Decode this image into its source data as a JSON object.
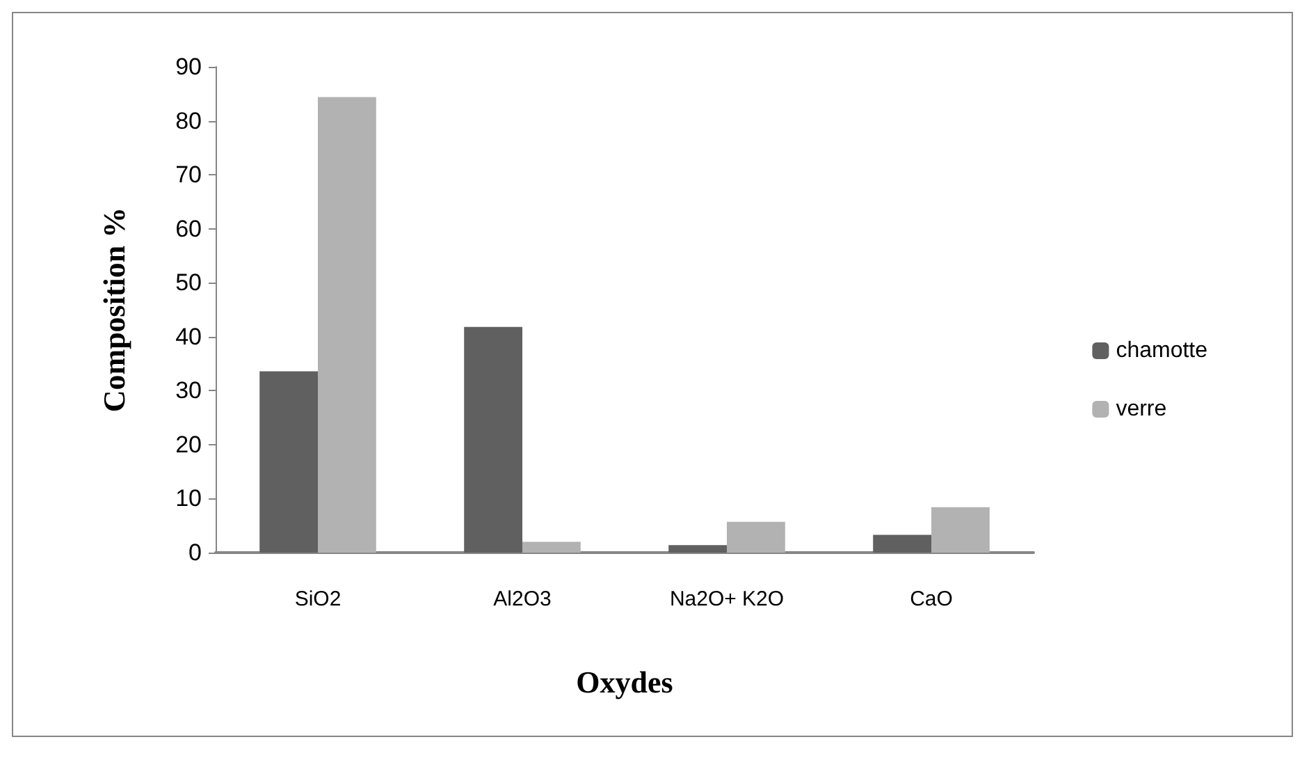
{
  "chart_data": {
    "type": "bar",
    "xlabel": "Oxydes",
    "ylabel": "Composition %",
    "categories": [
      "SiO2",
      "Al2O3",
      "Na2O+ K2O",
      "CaO"
    ],
    "series": [
      {
        "name": "chamotte",
        "color": "#606060",
        "values": [
          33.6,
          41.8,
          1.4,
          3.3
        ]
      },
      {
        "name": "verre",
        "color": "#b2b2b2",
        "values": [
          84.4,
          2.0,
          5.7,
          8.4
        ]
      }
    ],
    "ylim": [
      0,
      90
    ],
    "yticks": [
      0,
      10,
      20,
      30,
      40,
      50,
      60,
      70,
      80,
      90
    ],
    "grid": false,
    "legend": "right"
  }
}
